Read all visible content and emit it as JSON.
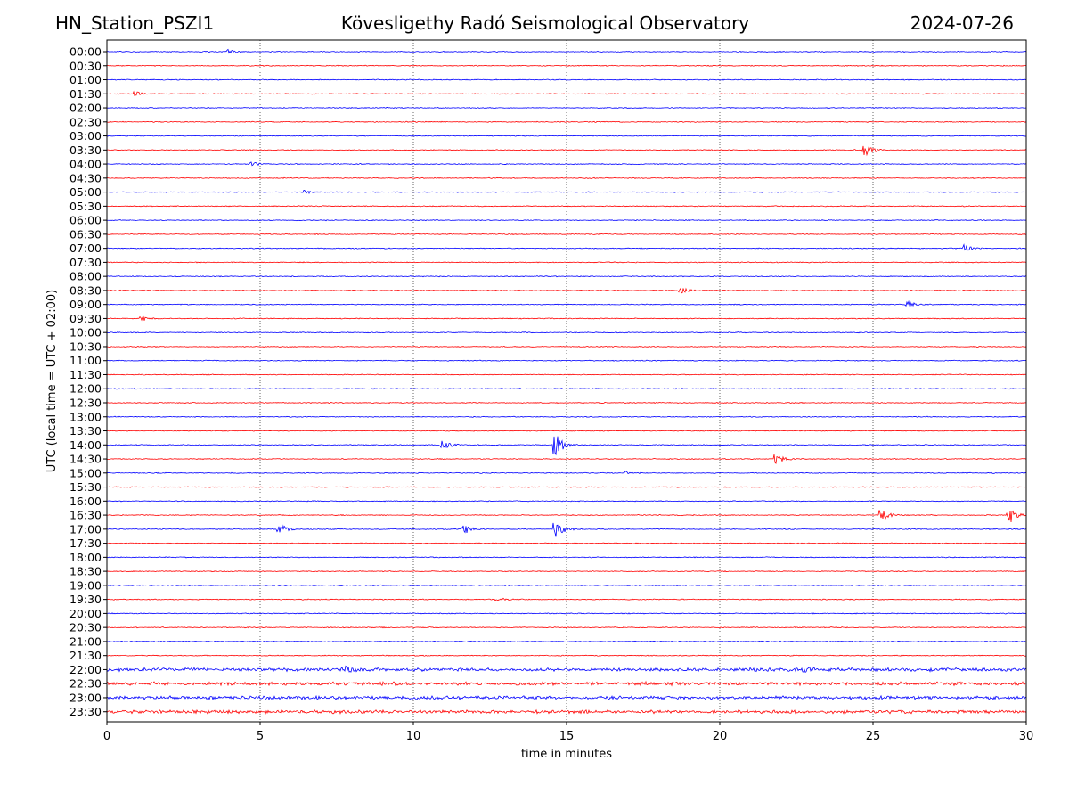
{
  "header": {
    "station": "HN_Station_PSZI1",
    "observatory": "Kövesligethy Radó Seismological Observatory",
    "date": "2024-07-26"
  },
  "chart_data": {
    "type": "line",
    "title": "Kövesligethy Radó Seismological Observatory",
    "xlabel": "time in minutes",
    "ylabel": "UTC (local time = UTC + 02:00)",
    "xlim": [
      0,
      30
    ],
    "xticks": [
      0,
      5,
      10,
      15,
      20,
      25,
      30
    ],
    "grid": "vertical dotted lines at 5-minute ticks",
    "colors": [
      "#0000ff",
      "#ff0000"
    ],
    "rows": [
      "00:00",
      "00:30",
      "01:00",
      "01:30",
      "02:00",
      "02:30",
      "03:00",
      "03:30",
      "04:00",
      "04:30",
      "05:00",
      "05:30",
      "06:00",
      "06:30",
      "07:00",
      "07:30",
      "08:00",
      "08:30",
      "09:00",
      "09:30",
      "10:00",
      "10:30",
      "11:00",
      "11:30",
      "12:00",
      "12:30",
      "13:00",
      "13:30",
      "14:00",
      "14:30",
      "15:00",
      "15:30",
      "16:00",
      "16:30",
      "17:00",
      "17:30",
      "18:00",
      "18:30",
      "19:00",
      "19:30",
      "20:00",
      "20:30",
      "21:00",
      "21:30",
      "22:00",
      "22:30",
      "23:00",
      "23:30"
    ],
    "events": [
      {
        "row": "00:00",
        "t": 4.0,
        "amp": 2
      },
      {
        "row": "01:30",
        "t": 1.0,
        "amp": 2
      },
      {
        "row": "03:30",
        "t": 24.8,
        "amp": 6
      },
      {
        "row": "04:00",
        "t": 4.8,
        "amp": 2
      },
      {
        "row": "05:00",
        "t": 6.5,
        "amp": 2
      },
      {
        "row": "07:00",
        "t": 28.0,
        "amp": 4
      },
      {
        "row": "08:30",
        "t": 18.8,
        "amp": 3
      },
      {
        "row": "09:00",
        "t": 26.2,
        "amp": 3
      },
      {
        "row": "09:30",
        "t": 1.2,
        "amp": 2
      },
      {
        "row": "14:00",
        "t": 11.0,
        "amp": 5
      },
      {
        "row": "14:00",
        "t": 14.7,
        "amp": 11
      },
      {
        "row": "14:30",
        "t": 21.9,
        "amp": 5
      },
      {
        "row": "15:00",
        "t": 17.0,
        "amp": 2
      },
      {
        "row": "16:30",
        "t": 25.3,
        "amp": 7
      },
      {
        "row": "16:30",
        "t": 29.5,
        "amp": 9
      },
      {
        "row": "17:00",
        "t": 5.7,
        "amp": 5
      },
      {
        "row": "17:00",
        "t": 11.7,
        "amp": 5
      },
      {
        "row": "17:00",
        "t": 14.7,
        "amp": 9
      },
      {
        "row": "19:30",
        "t": 12.8,
        "amp": 2
      },
      {
        "row": "22:00",
        "t": 7.8,
        "amp": 3
      },
      {
        "row": "22:00",
        "t": 22.8,
        "amp": 3
      }
    ],
    "noisy_rows": [
      "22:00",
      "22:30",
      "23:00",
      "23:30"
    ]
  }
}
